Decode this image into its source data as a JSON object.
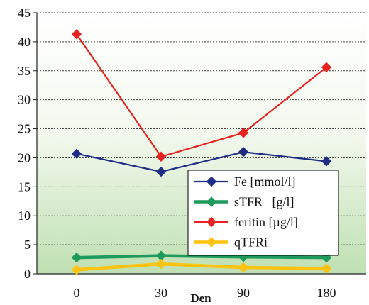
{
  "chart_data": {
    "type": "line",
    "title": "",
    "xlabel": "Den",
    "ylabel": "",
    "categories": [
      "0",
      "30",
      "90",
      "180"
    ],
    "ylim": [
      0,
      45
    ],
    "yticks": [
      0,
      5,
      10,
      15,
      20,
      25,
      30,
      35,
      40,
      45
    ],
    "grid": true,
    "legend_position": "center-right",
    "series": [
      {
        "name": "Fe [mmol/l]",
        "values": [
          20.7,
          17.6,
          21.0,
          19.4
        ],
        "color": "#1f2d86"
      },
      {
        "name": "sTFR   [g/l]",
        "values": [
          2.8,
          3.1,
          2.9,
          2.8
        ],
        "color": "#1e9a5c"
      },
      {
        "name": "feritin [µg/l]",
        "values": [
          41.3,
          20.2,
          24.3,
          35.6
        ],
        "color": "#e8231f"
      },
      {
        "name": "qTFRi",
        "values": [
          0.7,
          1.7,
          1.1,
          0.9
        ],
        "color": "#ffc20e"
      }
    ]
  }
}
